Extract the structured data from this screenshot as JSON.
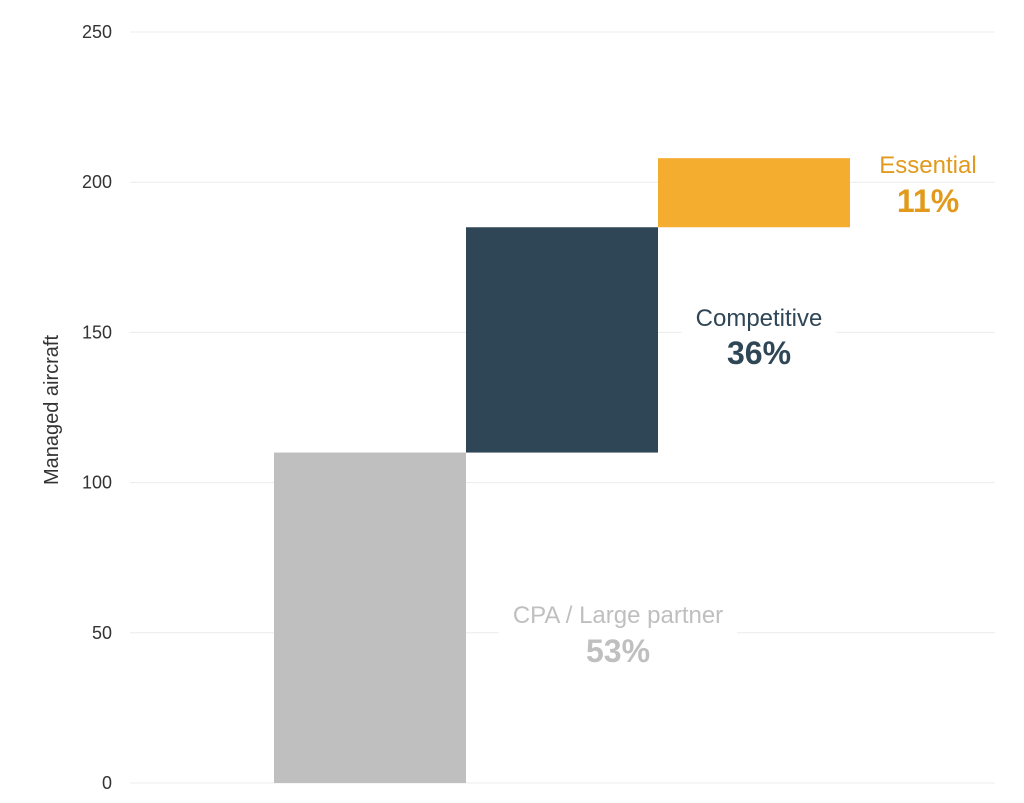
{
  "chart_data": {
    "type": "bar",
    "subtype": "waterfall",
    "ylabel": "Managed aircraft",
    "ylim": [
      0,
      250
    ],
    "yticks": [
      0,
      50,
      100,
      150,
      200,
      250
    ],
    "grid": true,
    "legend": "none",
    "segments": [
      {
        "label": "CPA / Large partner",
        "percent": "53%",
        "start": 0,
        "end": 110,
        "color": "#bfbfbf"
      },
      {
        "label": "Competitive",
        "percent": "36%",
        "start": 110,
        "end": 185,
        "color": "#2f4656"
      },
      {
        "label": "Essential",
        "percent": "11%",
        "start": 185,
        "end": 208,
        "color": "#f5ad2f",
        "label_color": "#e19a1c"
      }
    ]
  }
}
